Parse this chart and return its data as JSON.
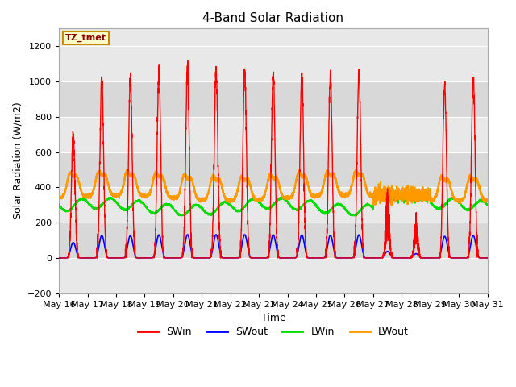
{
  "title": "4-Band Solar Radiation",
  "xlabel": "Time",
  "ylabel": "Solar Radiation (W/m2)",
  "ylim": [
    -200,
    1300
  ],
  "yticks": [
    -200,
    0,
    200,
    400,
    600,
    800,
    1000,
    1200
  ],
  "x_labels": [
    "May 16",
    "May 17",
    "May 18",
    "May 19",
    "May 20",
    "May 21",
    "May 22",
    "May 23",
    "May 24",
    "May 25",
    "May 26",
    "May 27",
    "May 28",
    "May 29",
    "May 30",
    "May 31"
  ],
  "annotation_text": "TZ_tmet",
  "annotation_bg": "#ffffcc",
  "annotation_border": "#cc8800",
  "swin_color": "#ff0000",
  "swout_color": "#0000ff",
  "lwin_color": "#00dd00",
  "lwout_color": "#ff9900",
  "bg_color": "#ffffff",
  "plot_bg_color": "#e8e8e8",
  "grid_color": "#ffffff",
  "band_colors": [
    "#e8e8e8",
    "#d8d8d8"
  ],
  "legend_labels": [
    "SWin",
    "SWout",
    "LWin",
    "LWout"
  ],
  "n_days": 15,
  "points_per_day": 288
}
